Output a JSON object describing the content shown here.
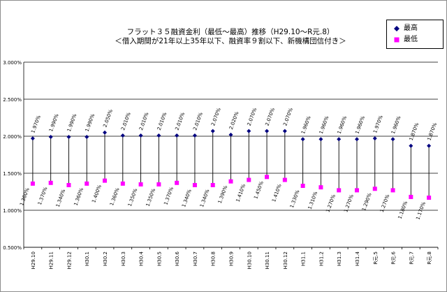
{
  "chart_data": {
    "type": "scatter",
    "title": "フラット３５融資金利（最低～最高）推移（H29.10～R元.8）",
    "subtitle": "＜借入期間が21年以上35年以下、融資率９割以下、新機構団信付き＞",
    "categories": [
      "H29.10",
      "H29.11",
      "H29.12",
      "H30.1",
      "H30.2",
      "H30.3",
      "H30.4",
      "H30.5",
      "H30.6",
      "H30.7",
      "H30.8",
      "H30.9",
      "H30.10",
      "H30.11",
      "H30.12",
      "H31.1",
      "H31.2",
      "H31.3",
      "H31.4",
      "R元.5",
      "R元.6",
      "R元.7",
      "R元.8"
    ],
    "series": [
      {
        "name": "最高",
        "color": "#000080",
        "marker": "diamond",
        "values": [
          1.97,
          1.99,
          1.99,
          1.99,
          2.05,
          2.01,
          2.01,
          2.01,
          2.01,
          2.01,
          2.07,
          2.02,
          2.07,
          2.07,
          2.07,
          1.96,
          1.96,
          1.96,
          1.96,
          1.97,
          1.96,
          1.87,
          1.87
        ],
        "labels": [
          "1.970%",
          "1.990%",
          "1.990%",
          "1.990%",
          "2.050%",
          "2.010%",
          "2.010%",
          "2.010%",
          "2.010%",
          "2.010%",
          "2.070%",
          "2.020%",
          "2.070%",
          "2.070%",
          "2.070%",
          "1.960%",
          "1.960%",
          "1.960%",
          "1.960%",
          "1.970%",
          "1.960%",
          "1.870%",
          "1.870%"
        ]
      },
      {
        "name": "最低",
        "color": "#ff00ff",
        "marker": "square",
        "values": [
          1.36,
          1.37,
          1.34,
          1.36,
          1.4,
          1.36,
          1.35,
          1.35,
          1.37,
          1.34,
          1.34,
          1.39,
          1.41,
          1.45,
          1.41,
          1.33,
          1.31,
          1.27,
          1.27,
          1.29,
          1.27,
          1.18,
          1.17
        ],
        "labels": [
          "1.360%",
          "1.370%",
          "1.340%",
          "1.360%",
          "1.400%",
          "1.360%",
          "1.350%",
          "1.350%",
          "1.370%",
          "1.340%",
          "1.340%",
          "1.390%",
          "1.410%",
          "1.450%",
          "1.410%",
          "1.330%",
          "1.310%",
          "1.270%",
          "1.270%",
          "1.290%",
          "1.270%",
          "1.180%",
          "1.170%"
        ]
      }
    ],
    "ylim": [
      0.5,
      3.0
    ],
    "yticks": [
      {
        "value": 0.5,
        "label": "0.500%"
      },
      {
        "value": 1.0,
        "label": "1.000%"
      },
      {
        "value": 1.5,
        "label": "1.500%"
      },
      {
        "value": 2.0,
        "label": "2.000%"
      },
      {
        "value": 2.5,
        "label": "2.500%"
      },
      {
        "value": 3.0,
        "label": "3.000%"
      }
    ],
    "grid": true,
    "legend_position": "top-right",
    "range_lines": true
  }
}
